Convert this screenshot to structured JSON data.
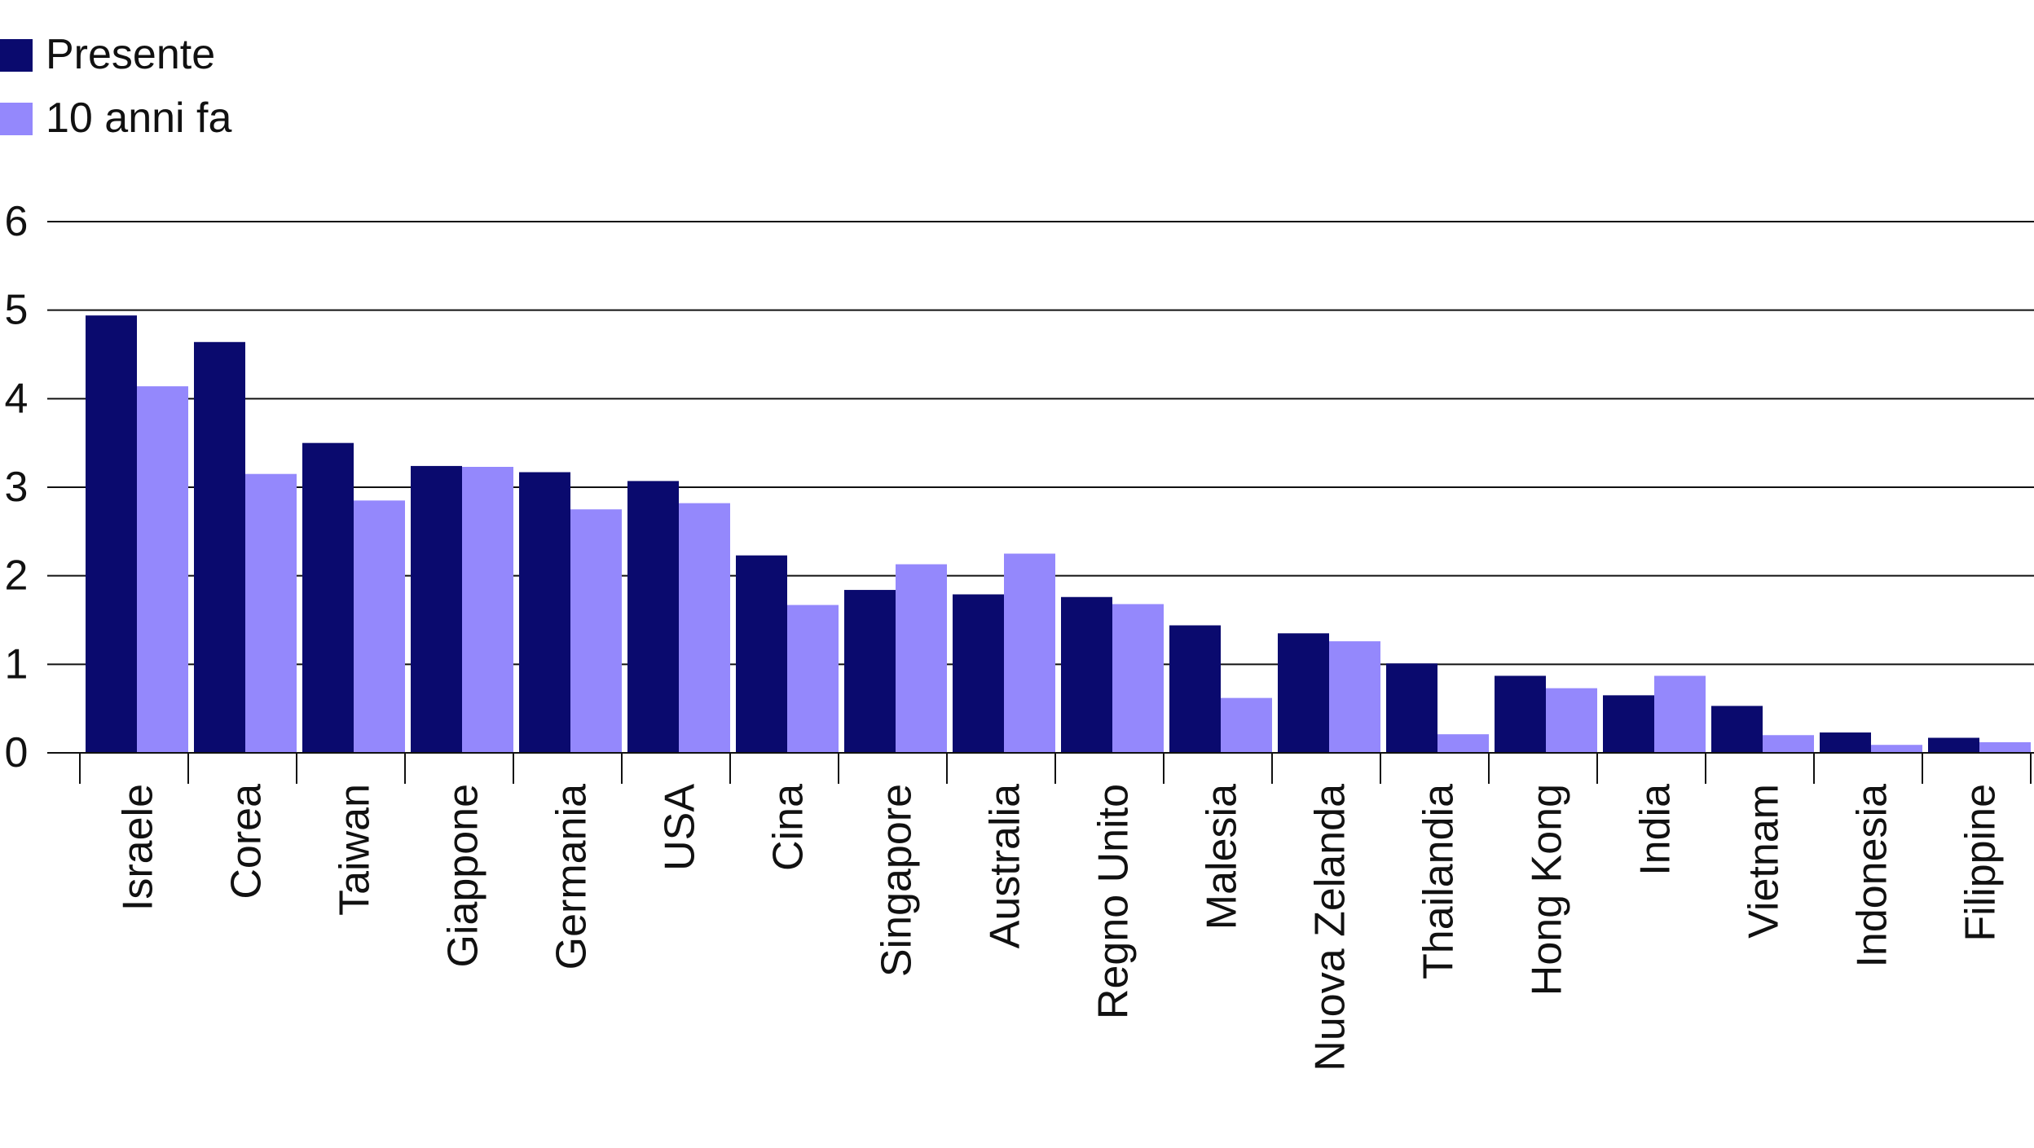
{
  "chart_data": {
    "type": "bar",
    "title": "",
    "xlabel": "",
    "ylabel": "",
    "ylim": [
      0,
      6
    ],
    "yticks": [
      0,
      1,
      2,
      3,
      4,
      5,
      6
    ],
    "grid": true,
    "legend_position": "top-left",
    "categories": [
      "Israele",
      "Corea",
      "Taiwan",
      "Giappone",
      "Germania",
      "USA",
      "Cina",
      "Singapore",
      "Australia",
      "Regno Unito",
      "Malesia",
      "Nuova Zelanda",
      "Thailandia",
      "Hong Kong",
      "India",
      "Vietnam",
      "Indonesia",
      "Filippine"
    ],
    "series": [
      {
        "name": "Presente",
        "color": "#0a0a6e",
        "values": [
          4.94,
          4.64,
          3.5,
          3.24,
          3.17,
          3.07,
          2.23,
          1.84,
          1.79,
          1.76,
          1.44,
          1.35,
          1.01,
          0.87,
          0.65,
          0.53,
          0.23,
          0.17
        ]
      },
      {
        "name": "10 anni fa",
        "color": "#9488fc",
        "values": [
          4.14,
          3.15,
          2.85,
          3.23,
          2.75,
          2.82,
          1.67,
          2.13,
          2.25,
          1.68,
          0.62,
          1.26,
          0.21,
          0.73,
          0.87,
          0.2,
          0.09,
          0.12
        ]
      }
    ]
  }
}
